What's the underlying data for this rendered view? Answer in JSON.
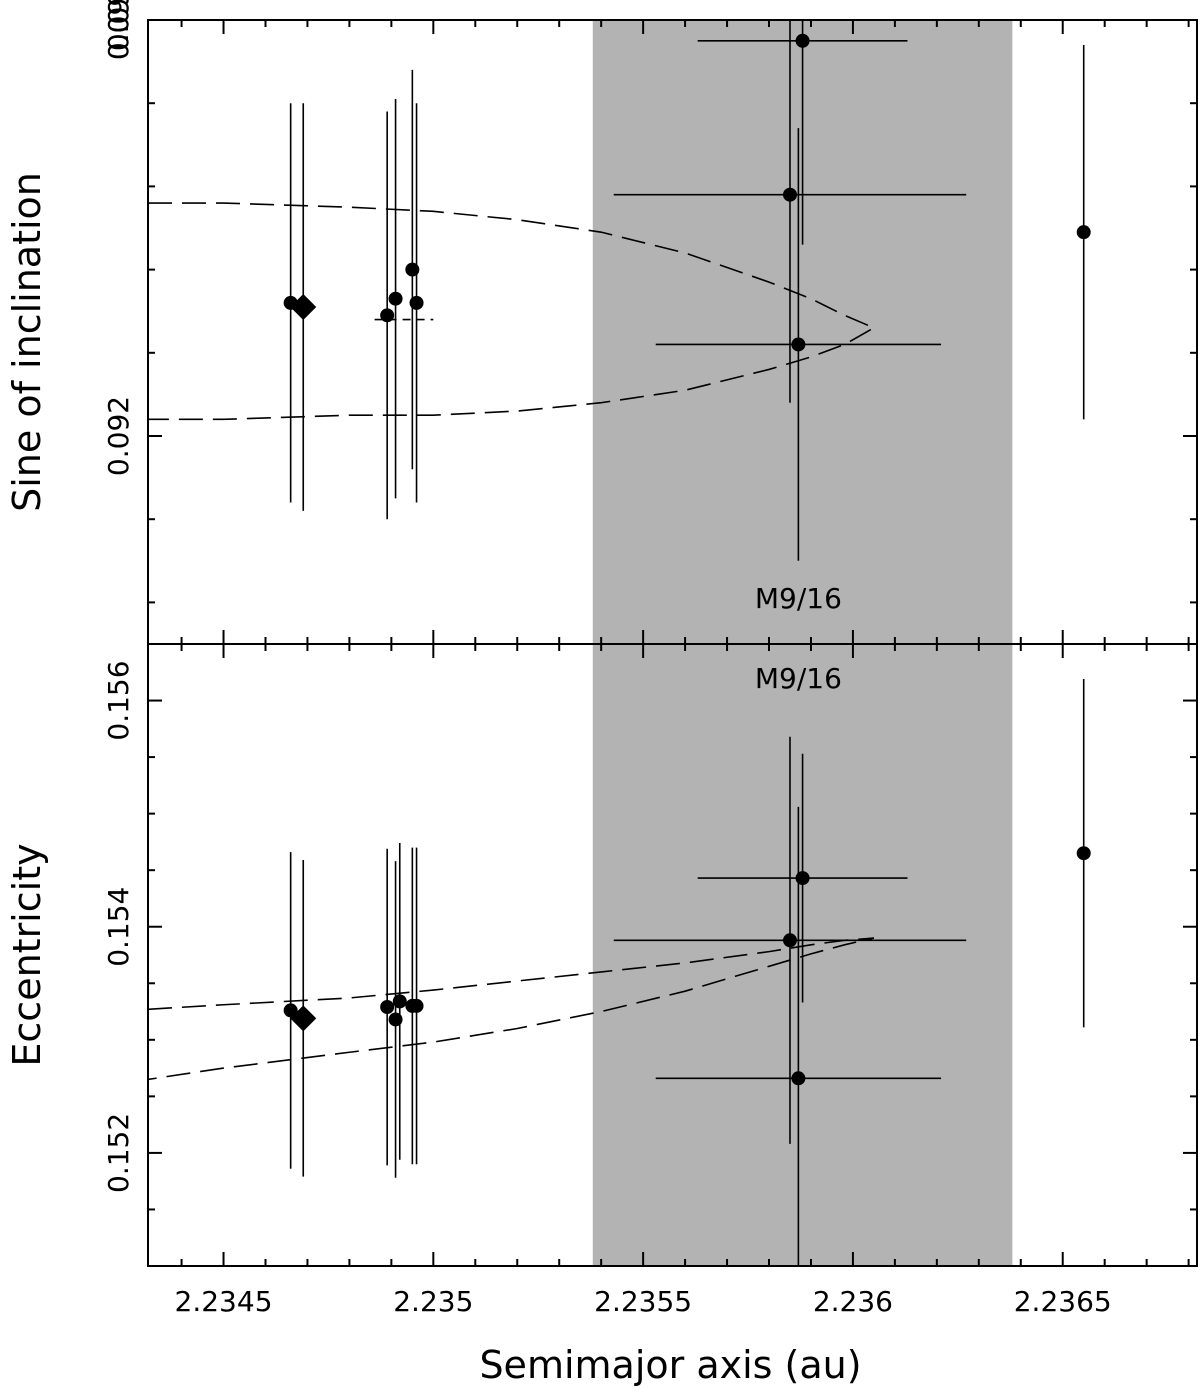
{
  "chart_data": [
    {
      "type": "scatter",
      "panel": "top",
      "ylabel": "Sine of inclination",
      "xlabel": "",
      "xlim": [
        2.23432,
        2.23682
      ],
      "ylim": [
        0.0915,
        0.093
      ],
      "y_ticks": [
        {
          "value": 0.092,
          "label": "0.092"
        },
        {
          "value": 0.093,
          "label": "0.093"
        },
        {
          "value": 0.094,
          "label": "0.09"
        }
      ],
      "shaded_region": {
        "x": [
          2.23538,
          2.23638
        ],
        "color": "#b3b3b3"
      },
      "annotation": {
        "text": "M9/16",
        "x": 2.23587,
        "y": 0.09161
      },
      "points": [
        {
          "x": 2.23466,
          "y": 0.09232,
          "xerr": 0.0,
          "yerr": 0.00048
        },
        {
          "x": 2.23489,
          "y": 0.09229,
          "xerr": 0.0,
          "yerr": 0.00049
        },
        {
          "x": 2.23491,
          "y": 0.09233,
          "xerr": 0.0,
          "yerr": 0.00048
        },
        {
          "x": 2.23495,
          "y": 0.0924,
          "xerr": 0.0,
          "yerr": 0.00048
        },
        {
          "x": 2.23496,
          "y": 0.09232,
          "xerr": 0.0,
          "yerr": 0.00048
        },
        {
          "x": 2.23585,
          "y": 0.09258,
          "xerr": 0.00042,
          "yerr": 0.0005
        },
        {
          "x": 2.23587,
          "y": 0.09222,
          "xerr": 0.00034,
          "yerr": 0.00052
        },
        {
          "x": 2.23588,
          "y": 0.09295,
          "xerr": 0.00025,
          "yerr": 0.00049
        },
        {
          "x": 2.23655,
          "y": 0.09249,
          "xerr": 0.0,
          "yerr": 0.00045
        }
      ],
      "diamond": {
        "x": 2.23469,
        "y": 0.09231,
        "yerr": 0.00049
      },
      "dashed_curve": {
        "x": [
          2.23432,
          2.2345,
          2.2348,
          2.235,
          2.2352,
          2.2354,
          2.2356,
          2.2358,
          2.2359,
          2.23598,
          2.23605,
          2.23598,
          2.2359,
          2.2358,
          2.2356,
          2.2354,
          2.2352,
          2.235,
          2.2348,
          2.2345,
          2.23432
        ],
        "y": [
          0.09256,
          0.09256,
          0.09255,
          0.09254,
          0.09252,
          0.09249,
          0.09244,
          0.09237,
          0.09233,
          0.09229,
          0.09226,
          0.09222,
          0.09219,
          0.09216,
          0.09211,
          0.09208,
          0.09206,
          0.09205,
          0.09205,
          0.09204,
          0.09204
        ]
      },
      "short_dashed_segment": {
        "x": [
          2.23486,
          2.235
        ],
        "y": [
          0.09228,
          0.09228
        ]
      }
    },
    {
      "type": "scatter",
      "panel": "bottom",
      "ylabel": "Eccentricity",
      "xlabel": "Semimajor axis (au)",
      "xlim": [
        2.23432,
        2.23682
      ],
      "ylim": [
        0.151,
        0.1565
      ],
      "x_ticks": [
        {
          "value": 2.2345,
          "label": "2.2345"
        },
        {
          "value": 2.235,
          "label": "2.235"
        },
        {
          "value": 2.2355,
          "label": "2.2355"
        },
        {
          "value": 2.236,
          "label": "2.236"
        },
        {
          "value": 2.2365,
          "label": "2.2365"
        }
      ],
      "y_ticks": [
        {
          "value": 0.152,
          "label": "0.152"
        },
        {
          "value": 0.154,
          "label": "0.154"
        },
        {
          "value": 0.156,
          "label": "0.156"
        }
      ],
      "shaded_region": {
        "x": [
          2.23538,
          2.23638
        ],
        "color": "#b3b3b3"
      },
      "annotation": {
        "text": "M9/16",
        "x": 2.23587,
        "y": 0.1562
      },
      "points": [
        {
          "x": 2.23466,
          "y": 0.15326,
          "xerr": 0.0,
          "yerr": 0.0014
        },
        {
          "x": 2.23489,
          "y": 0.15329,
          "xerr": 0.0,
          "yerr": 0.0014
        },
        {
          "x": 2.23491,
          "y": 0.15318,
          "xerr": 0.0,
          "yerr": 0.0014
        },
        {
          "x": 2.23492,
          "y": 0.15334,
          "xerr": 0.0,
          "yerr": 0.0014
        },
        {
          "x": 2.23495,
          "y": 0.1533,
          "xerr": 0.0,
          "yerr": 0.0014
        },
        {
          "x": 2.23496,
          "y": 0.1533,
          "xerr": 0.0,
          "yerr": 0.0014
        },
        {
          "x": 2.23585,
          "y": 0.15388,
          "xerr": 0.00042,
          "yerr": 0.0018
        },
        {
          "x": 2.23587,
          "y": 0.15266,
          "xerr": 0.00034,
          "yerr": 0.0024
        },
        {
          "x": 2.23588,
          "y": 0.15443,
          "xerr": 0.00025,
          "yerr": 0.0011
        },
        {
          "x": 2.23655,
          "y": 0.15465,
          "xerr": 0.0,
          "yerr": 0.00154
        }
      ],
      "diamond": {
        "x": 2.23469,
        "y": 0.15319,
        "yerr": 0.0014
      },
      "dashed_curve": {
        "x": [
          2.23432,
          2.2345,
          2.2348,
          2.235,
          2.2352,
          2.2354,
          2.2356,
          2.2358,
          2.2359,
          2.23598,
          2.23605,
          2.23598,
          2.2359,
          2.2358,
          2.2356,
          2.2354,
          2.2352,
          2.235,
          2.2348,
          2.2345,
          2.23432
        ],
        "y": [
          0.15327,
          0.15331,
          0.15337,
          0.15344,
          0.15352,
          0.1536,
          0.15368,
          0.15378,
          0.15384,
          0.15388,
          0.1539,
          0.15384,
          0.15376,
          0.15365,
          0.15343,
          0.15325,
          0.1531,
          0.15298,
          0.15289,
          0.15275,
          0.15265
        ]
      }
    }
  ]
}
